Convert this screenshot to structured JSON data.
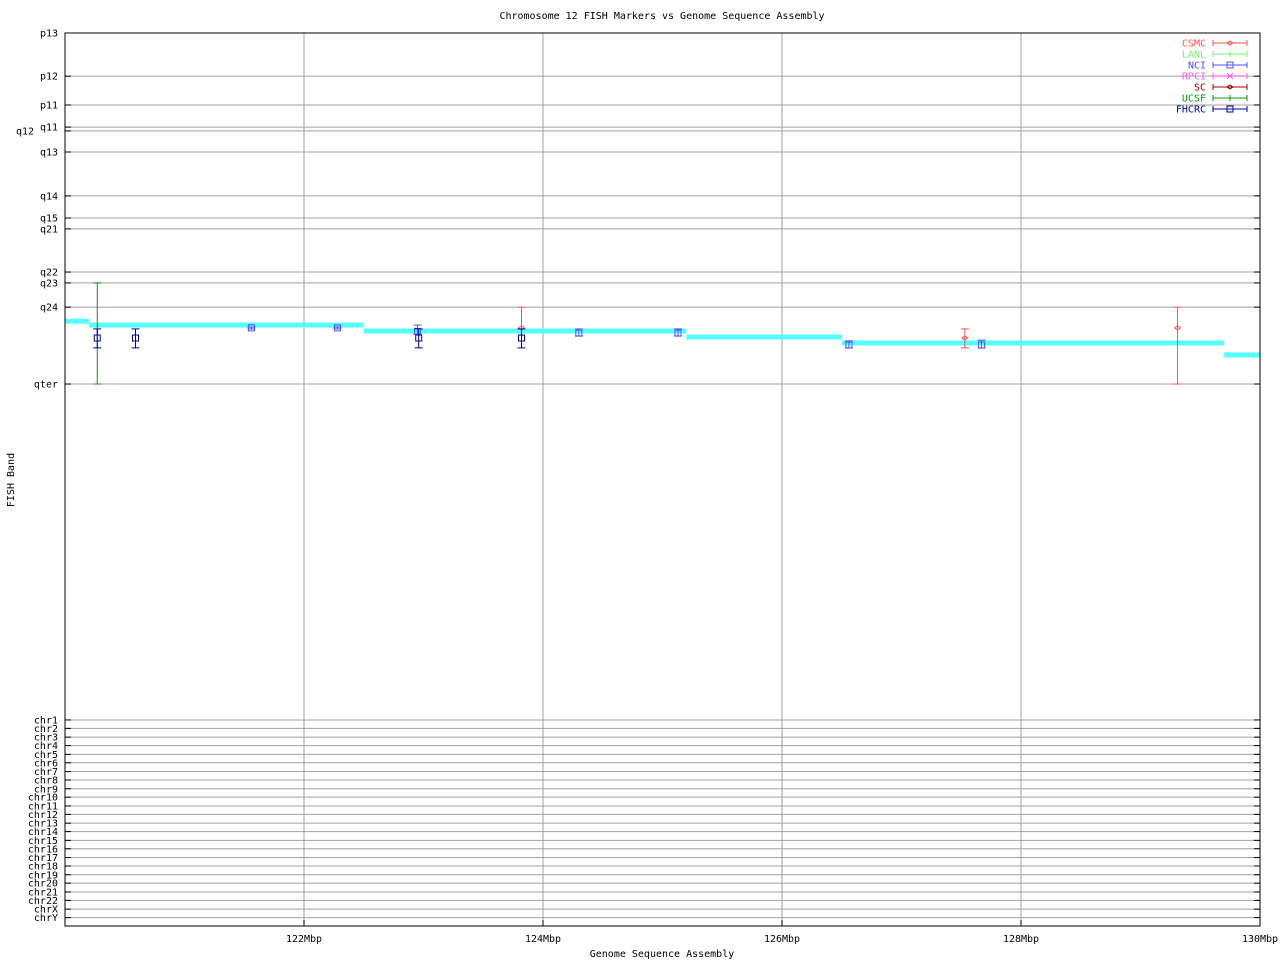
{
  "chart_data": {
    "type": "scatter",
    "title": "Chromosome 12 FISH Markers vs Genome Sequence Assembly",
    "xlabel": "Genome Sequence Assembly",
    "ylabel": "FISH Band",
    "xlim": [
      120,
      130
    ],
    "ylim": [
      0,
      254.4
    ],
    "y_inverted": true,
    "grid": true,
    "legend_position": "top-right",
    "xticks": [
      {
        "value": 122,
        "label": "122Mbp"
      },
      {
        "value": 124,
        "label": "124Mbp"
      },
      {
        "value": 126,
        "label": "126Mbp"
      },
      {
        "value": 128,
        "label": "128Mbp"
      },
      {
        "value": 130,
        "label": "130Mbp"
      }
    ],
    "yticks": [
      {
        "value": 0,
        "label": "p13"
      },
      {
        "value": 12.3,
        "label": "p12"
      },
      {
        "value": 20.5,
        "label": "p11"
      },
      {
        "value": 26.8,
        "label": "q11"
      },
      {
        "value": 27.9,
        "label": "q12"
      },
      {
        "value": 33.9,
        "label": "q13"
      },
      {
        "value": 46.4,
        "label": "q14"
      },
      {
        "value": 52.7,
        "label": "q15"
      },
      {
        "value": 55.8,
        "label": "q21"
      },
      {
        "value": 68.1,
        "label": "q22"
      },
      {
        "value": 71.2,
        "label": "q23"
      },
      {
        "value": 78.1,
        "label": "q24"
      },
      {
        "value": 100,
        "label": "qter"
      },
      {
        "value": 195.7,
        "label": "chr1"
      },
      {
        "value": 198.1,
        "label": "chr2"
      },
      {
        "value": 200.6,
        "label": "chr3"
      },
      {
        "value": 203.0,
        "label": "chr4"
      },
      {
        "value": 205.5,
        "label": "chr5"
      },
      {
        "value": 207.9,
        "label": "chr6"
      },
      {
        "value": 210.4,
        "label": "chr7"
      },
      {
        "value": 212.8,
        "label": "chr8"
      },
      {
        "value": 215.3,
        "label": "chr9"
      },
      {
        "value": 217.7,
        "label": "chr10"
      },
      {
        "value": 220.2,
        "label": "chr11"
      },
      {
        "value": 222.6,
        "label": "chr12"
      },
      {
        "value": 225.1,
        "label": "chr13"
      },
      {
        "value": 227.5,
        "label": "chr14"
      },
      {
        "value": 230.0,
        "label": "chr15"
      },
      {
        "value": 232.4,
        "label": "chr16"
      },
      {
        "value": 234.9,
        "label": "chr17"
      },
      {
        "value": 237.3,
        "label": "chr18"
      },
      {
        "value": 239.8,
        "label": "chr19"
      },
      {
        "value": 242.2,
        "label": "chr20"
      },
      {
        "value": 244.7,
        "label": "chr21"
      },
      {
        "value": 247.1,
        "label": "chr22"
      },
      {
        "value": 249.6,
        "label": "chrX"
      },
      {
        "value": 252.0,
        "label": "chrY"
      }
    ],
    "assembly_color": "#55ffff",
    "assembly_steps": [
      {
        "x0": 120.0,
        "x1": 120.2,
        "y": 82.1
      },
      {
        "x0": 120.2,
        "x1": 122.5,
        "y": 83.2
      },
      {
        "x0": 122.5,
        "x1": 125.2,
        "y": 84.9
      },
      {
        "x0": 125.2,
        "x1": 126.5,
        "y": 86.6
      },
      {
        "x0": 126.5,
        "x1": 129.7,
        "y": 88.3
      },
      {
        "x0": 129.7,
        "x1": 130.0,
        "y": 91.7
      }
    ],
    "series": [
      {
        "name": "CSMC",
        "color": "#ff5050",
        "marker": "diamond",
        "points": [
          {
            "x": 123.82,
            "y": 84.0,
            "ylow": 78.1,
            "yhigh": 84.3
          },
          {
            "x": 127.53,
            "y": 86.9,
            "ylow": 84.3,
            "yhigh": 89.7
          },
          {
            "x": 129.31,
            "y": 84.0,
            "ylow": 78.1,
            "yhigh": 100
          }
        ]
      },
      {
        "name": "LANL",
        "color": "#66ff66",
        "marker": "tick",
        "points": []
      },
      {
        "name": "NCI",
        "color": "#5050ff",
        "marker": "square",
        "points": [
          {
            "x": 121.56,
            "y": 84.0,
            "ylow": 83.8,
            "yhigh": 84.3
          },
          {
            "x": 122.28,
            "y": 84.0,
            "ylow": 83.8,
            "yhigh": 84.3
          },
          {
            "x": 122.95,
            "y": 85.0,
            "ylow": 83.2,
            "yhigh": 85.8
          },
          {
            "x": 124.3,
            "y": 85.5,
            "ylow": 84.3,
            "yhigh": 86.3
          },
          {
            "x": 125.13,
            "y": 85.5,
            "ylow": 84.3,
            "yhigh": 86.3
          },
          {
            "x": 126.56,
            "y": 88.9,
            "ylow": 87.7,
            "yhigh": 89.7
          },
          {
            "x": 127.67,
            "y": 88.9,
            "ylow": 87.5,
            "yhigh": 89.7
          }
        ]
      },
      {
        "name": "RPCI",
        "color": "#ff55ff",
        "marker": "cross",
        "points": []
      },
      {
        "name": "SC",
        "color": "#a00000",
        "marker": "diamond",
        "points": []
      },
      {
        "name": "UCSF",
        "color": "#00a000",
        "marker": "tick",
        "points": [
          {
            "x": 120.27,
            "y": 85.5,
            "ylow": 71.2,
            "yhigh": 100
          }
        ]
      },
      {
        "name": "FHCRC",
        "color": "#0000a0",
        "marker": "square",
        "points": [
          {
            "x": 120.27,
            "y": 86.9,
            "ylow": 84.3,
            "yhigh": 89.7
          },
          {
            "x": 120.59,
            "y": 86.9,
            "ylow": 84.3,
            "yhigh": 89.7
          },
          {
            "x": 122.96,
            "y": 86.9,
            "ylow": 84.3,
            "yhigh": 89.7
          },
          {
            "x": 123.82,
            "y": 86.9,
            "ylow": 84.3,
            "yhigh": 89.7
          }
        ]
      }
    ]
  }
}
